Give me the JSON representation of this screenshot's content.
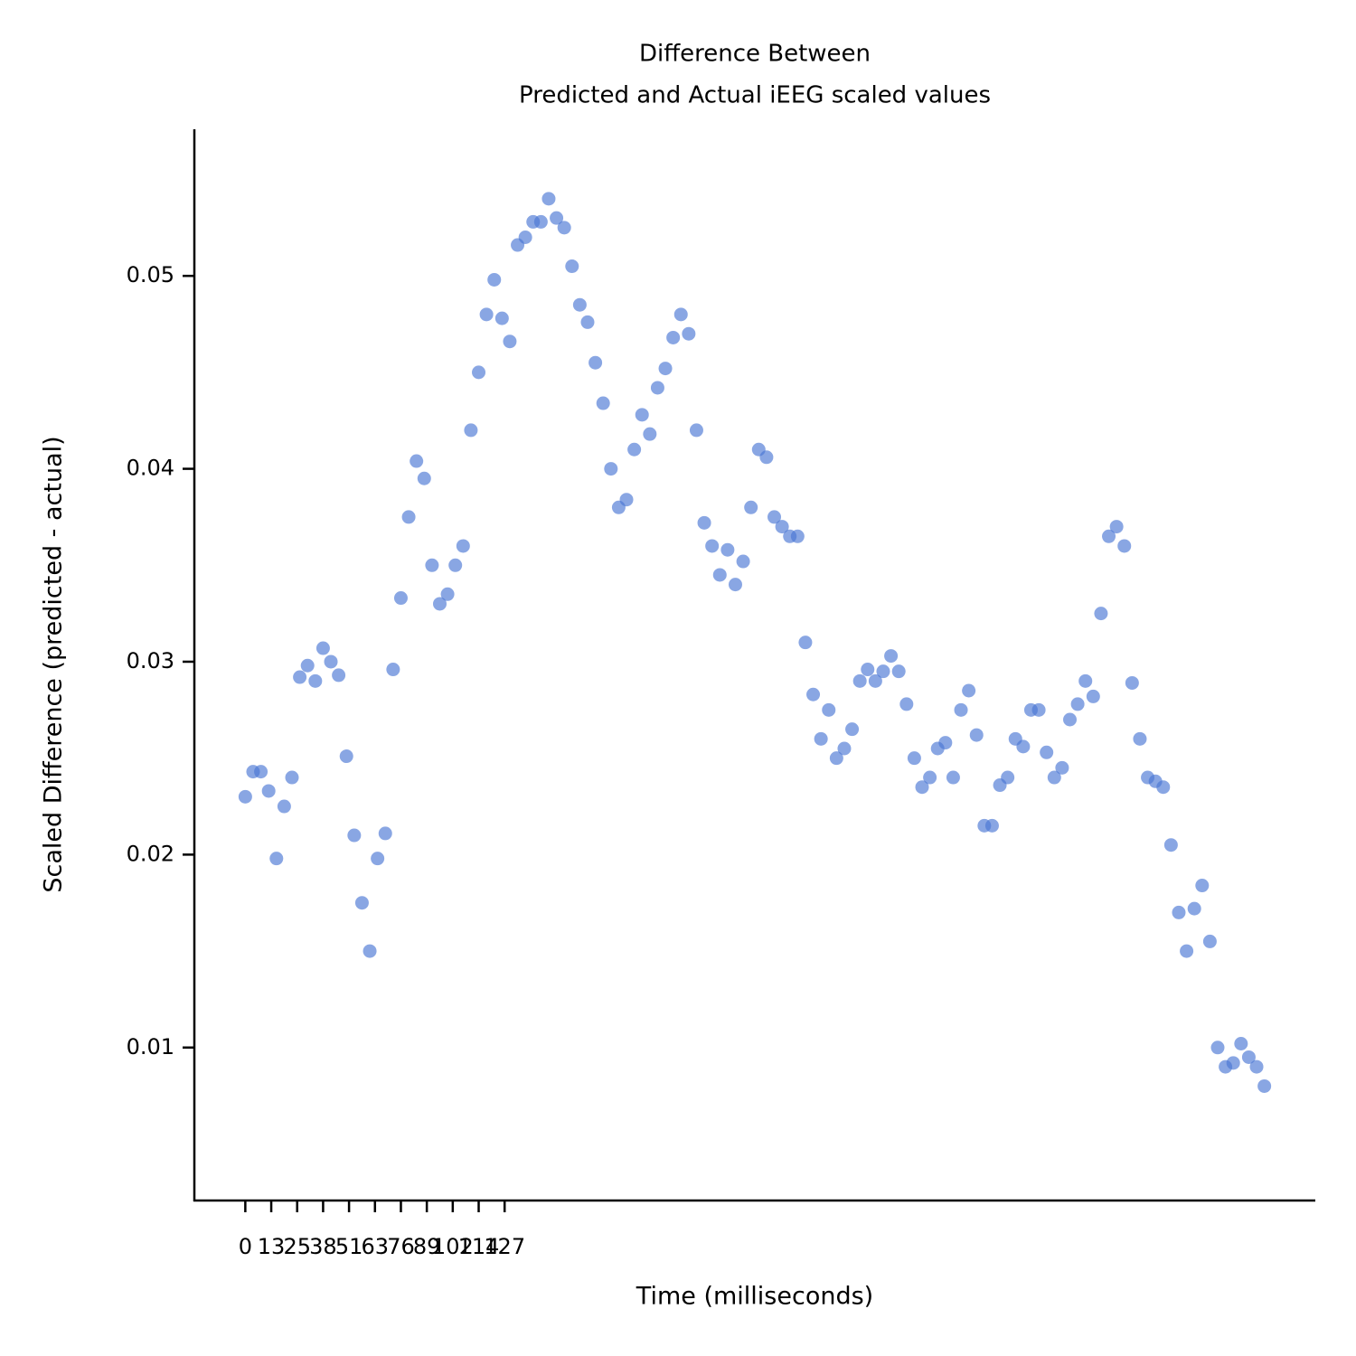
{
  "chart_data": {
    "type": "scatter",
    "title": [
      "Difference Between",
      "Predicted and Actual iEEG scaled values"
    ],
    "x_label": "Time (milliseconds)",
    "y_label": "Scaled Difference (predicted - actual)",
    "color": "#4a77d4",
    "xlim": [
      -19.65,
      412.65
    ],
    "ylim": [
      0.00207,
      0.0576
    ],
    "xticks": [
      {
        "value": 0,
        "label": "0"
      },
      {
        "value": 10,
        "label": "13"
      },
      {
        "value": 20,
        "label": "25"
      },
      {
        "value": 30,
        "label": "38"
      },
      {
        "value": 40,
        "label": "51"
      },
      {
        "value": 50,
        "label": "63"
      },
      {
        "value": 60,
        "label": "76"
      },
      {
        "value": 70,
        "label": "89"
      },
      {
        "value": 80,
        "label": "102"
      },
      {
        "value": 90,
        "label": "114"
      },
      {
        "value": 100,
        "label": "127"
      }
    ],
    "yticks": [
      0.01,
      0.02,
      0.03,
      0.04,
      0.05
    ],
    "x": [
      0,
      3,
      6,
      9,
      12,
      15,
      18,
      21,
      24,
      27,
      30,
      33,
      36,
      39,
      42,
      45,
      48,
      51,
      54,
      57,
      60,
      63,
      66,
      69,
      72,
      75,
      78,
      81,
      84,
      87,
      90,
      93,
      96,
      99,
      102,
      105,
      108,
      111,
      114,
      117,
      120,
      123,
      126,
      129,
      132,
      135,
      138,
      141,
      144,
      147,
      150,
      153,
      156,
      159,
      162,
      165,
      168,
      171,
      174,
      177,
      180,
      183,
      186,
      189,
      192,
      195,
      198,
      201,
      204,
      207,
      210,
      213,
      216,
      219,
      222,
      225,
      228,
      231,
      234,
      237,
      240,
      243,
      246,
      249,
      252,
      255,
      258,
      261,
      264,
      267,
      270,
      273,
      276,
      279,
      282,
      285,
      288,
      291,
      294,
      297,
      300,
      303,
      306,
      309,
      312,
      315,
      318,
      321,
      324,
      327,
      330,
      333,
      336,
      339,
      342,
      345,
      348,
      351,
      354,
      357,
      360,
      363,
      366,
      369,
      372,
      375,
      378,
      381,
      384,
      387,
      390,
      393
    ],
    "values": [
      0.023,
      0.0243,
      0.0243,
      0.0233,
      0.0198,
      0.0225,
      0.024,
      0.0292,
      0.0298,
      0.029,
      0.0307,
      0.03,
      0.0293,
      0.0251,
      0.021,
      0.0175,
      0.015,
      0.0198,
      0.0211,
      0.0296,
      0.0333,
      0.0375,
      0.0404,
      0.0395,
      0.035,
      0.033,
      0.0335,
      0.035,
      0.036,
      0.042,
      0.045,
      0.048,
      0.0498,
      0.0478,
      0.0466,
      0.0516,
      0.052,
      0.0528,
      0.0528,
      0.054,
      0.053,
      0.0525,
      0.0505,
      0.0485,
      0.0476,
      0.0455,
      0.0434,
      0.04,
      0.038,
      0.0384,
      0.041,
      0.0428,
      0.0418,
      0.0442,
      0.0452,
      0.0468,
      0.048,
      0.047,
      0.042,
      0.0372,
      0.036,
      0.0345,
      0.0358,
      0.034,
      0.0352,
      0.038,
      0.041,
      0.0406,
      0.0375,
      0.037,
      0.0365,
      0.0365,
      0.031,
      0.0283,
      0.026,
      0.0275,
      0.025,
      0.0255,
      0.0265,
      0.029,
      0.0296,
      0.029,
      0.0295,
      0.0303,
      0.0295,
      0.0278,
      0.025,
      0.0235,
      0.024,
      0.0255,
      0.0258,
      0.024,
      0.0275,
      0.0285,
      0.0262,
      0.0215,
      0.0215,
      0.0236,
      0.024,
      0.026,
      0.0256,
      0.0275,
      0.0275,
      0.0253,
      0.024,
      0.0245,
      0.027,
      0.0278,
      0.029,
      0.0282,
      0.0325,
      0.0365,
      0.037,
      0.036,
      0.0289,
      0.026,
      0.024,
      0.0238,
      0.0235,
      0.0205,
      0.017,
      0.015,
      0.0172,
      0.0184,
      0.0155,
      0.01,
      0.009,
      0.0092,
      0.0102,
      0.0095,
      0.009,
      0.008
    ]
  }
}
